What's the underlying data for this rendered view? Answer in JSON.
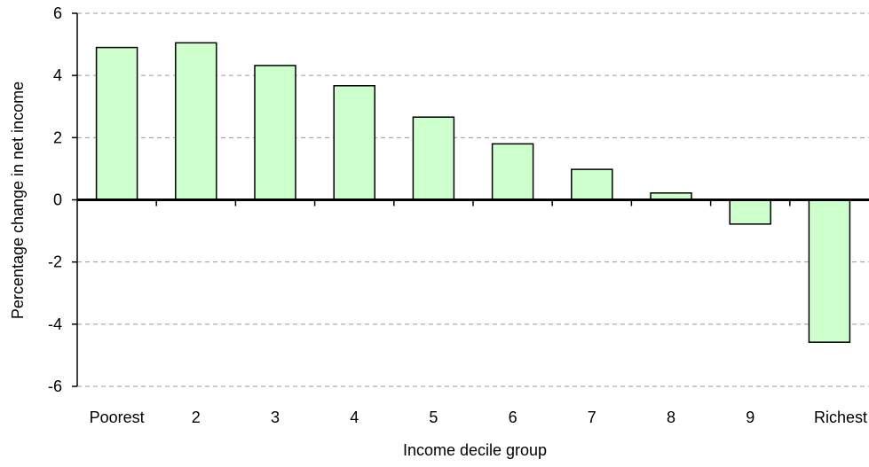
{
  "chart_data": {
    "type": "bar",
    "title": "",
    "xlabel": "Income decile group",
    "ylabel": "Percentage change in net income",
    "categories": [
      "Poorest",
      "2",
      "3",
      "4",
      "5",
      "6",
      "7",
      "8",
      "9",
      "Richest"
    ],
    "values": [
      4.9,
      5.05,
      4.32,
      3.67,
      2.66,
      1.8,
      0.98,
      0.22,
      -0.78,
      -4.58
    ],
    "ylim": [
      -6,
      6
    ],
    "yticks": [
      6,
      4,
      2,
      0,
      -2,
      -4,
      -6
    ],
    "ytick_labels": [
      "6",
      "4",
      "2",
      "0",
      "-2",
      "-4",
      "-6"
    ],
    "grid": "horizontal dashed",
    "legend": "none",
    "colors": {
      "bar_fill": "#ccffcc",
      "bar_stroke": "#000000",
      "grid": "#999999",
      "axis": "#000000"
    }
  }
}
